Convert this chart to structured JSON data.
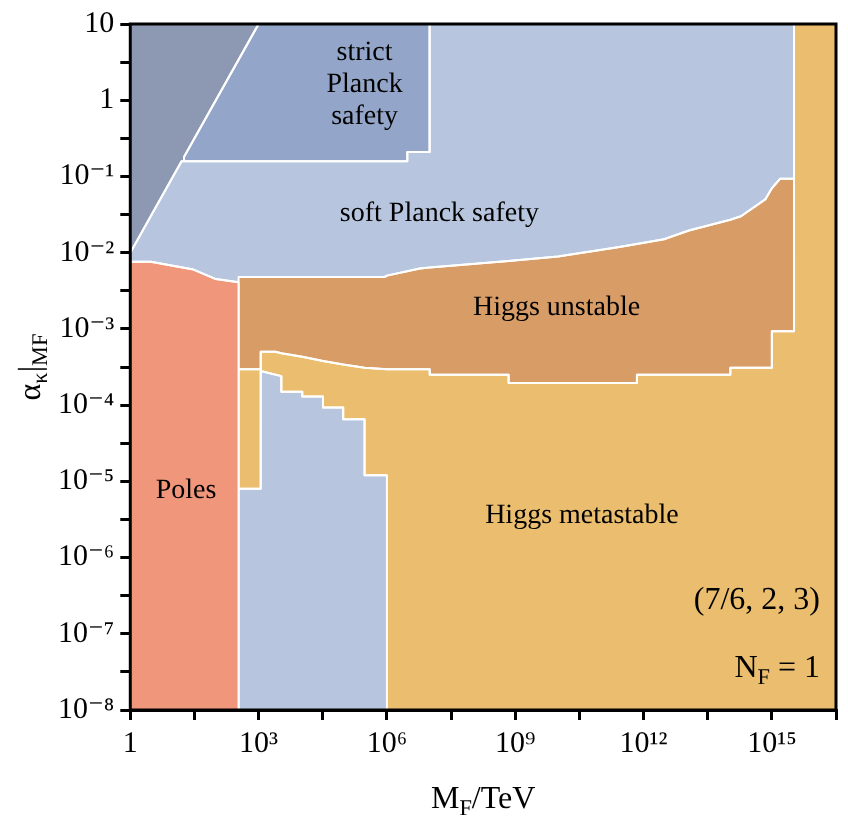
{
  "chart_data": {
    "type": "area",
    "xlabel": "M$_{F}$/TeV",
    "ylabel": "α$_{κ}$|$_{MF}$",
    "xlim": [
      1,
      3.16e+16
    ],
    "ylim": [
      1e-08,
      10
    ],
    "xticks": [
      1,
      {
        "value": 31.6,
        "label": null
      },
      {
        "value": 1000,
        "label": "10³"
      },
      {
        "value": 31600,
        "label": null
      },
      {
        "value": 1000000.0,
        "label": "10⁶"
      },
      {
        "value": 31600000.0,
        "label": null
      },
      {
        "value": 1000000000.0,
        "label": "10⁹"
      },
      {
        "value": 31600000000.0,
        "label": null
      },
      {
        "value": 1000000000000.0,
        "label": "10¹²"
      },
      {
        "value": 31600000000000.0,
        "label": null
      },
      {
        "value": 1000000000000000.0,
        "label": "10¹⁵"
      },
      {
        "value": 3.16e+16,
        "label": null
      }
    ],
    "yticks": [
      {
        "value": 1e-08,
        "label": "10⁻⁸"
      },
      {
        "value": 3.16e-08,
        "label": null
      },
      {
        "value": 1e-07,
        "label": "10⁻⁷"
      },
      {
        "value": 3.16e-07,
        "label": null
      },
      {
        "value": 1e-06,
        "label": "10⁻⁶"
      },
      {
        "value": 3.16e-06,
        "label": null
      },
      {
        "value": 1e-05,
        "label": "10⁻⁵"
      },
      {
        "value": 3.16e-05,
        "label": null
      },
      {
        "value": 0.0001,
        "label": "10⁻⁴"
      },
      {
        "value": 0.000316,
        "label": null
      },
      {
        "value": 0.001,
        "label": "10⁻³"
      },
      {
        "value": 0.00316,
        "label": null
      },
      {
        "value": 0.01,
        "label": "10⁻²"
      },
      {
        "value": 0.0316,
        "label": null
      },
      {
        "value": 0.1,
        "label": "10⁻¹"
      },
      {
        "value": 0.316,
        "label": null
      },
      1,
      {
        "value": 3.16,
        "label": null
      },
      10
    ],
    "log": "xy",
    "annotations": [
      "(7/6, 2, 3)",
      "N$_{F}$ = 1"
    ],
    "series": [
      {
        "color": "#8d98b3",
        "x": [
          1,
          1000
        ],
        "values": [
          10,
          10
        ]
      },
      {
        "name": "strict Planck safety",
        "color": "#93a6c9",
        "x": [
          18,
          1000,
          10000000.0
        ],
        "values": [
          0.18,
          10,
          10
        ]
      },
      {
        "name": "soft Planck safety",
        "color": "#b7c6de",
        "x": [
          1,
          3,
          15.8,
          3000000.0,
          3000000.0,
          10000000.0,
          10000000.0,
          3300000000000000.0
        ],
        "values": [
          0.01,
          0.03,
          0.158,
          0.158,
          0.21,
          0.21,
          10,
          10
        ]
      },
      {
        "name": "Higgs unstable",
        "color": "#d89c66",
        "x": [
          340,
          890000,
          1000000,
          5900000.0,
          10000000.0,
          700000000.0,
          10000000000.0,
          230000000000.0,
          700000000000.0,
          3000000000000.0,
          11500000000000.0,
          107000000000000.0,
          190000000000000.0,
          700000000000000.0,
          1000000000000000.0,
          1550000000000000.0,
          3300000000000000.0
        ],
        "values": [
          0.0048,
          0.0048,
          0.005,
          0.0062,
          0.0064,
          0.0078,
          0.0089,
          0.0117,
          0.013,
          0.015,
          0.0195,
          0.027,
          0.03,
          0.05,
          0.07,
          0.093,
          0.093
        ]
      },
      {
        "name": "Higgs metastable",
        "color": "#ebbd6e",
        "x": [
          340,
          1120,
          1120,
          2500,
          3400,
          10500,
          32000,
          95000,
          300000,
          1000000,
          10000000.0,
          10000000.0,
          700000000.0,
          700000000.0,
          700000000000.0,
          700000000000.0,
          107000000000000.0,
          107000000000000.0,
          1000000000000000.0,
          1000000000000000.0,
          3300000000000000.0,
          3300000000000000.0,
          3.16e+16
        ],
        "values": [
          0.000295,
          0.000295,
          0.0005,
          0.0005,
          0.00048,
          0.00043,
          0.00038,
          0.00034,
          0.00031,
          0.000295,
          0.000295,
          0.00025,
          0.00025,
          0.000195,
          0.000195,
          0.00025,
          0.00025,
          0.00031,
          0.00031,
          0.00093,
          0.00093,
          10,
          10
        ]
      },
      {
        "color": "#b7c6de",
        "x": [
          340,
          1120,
          1120,
          3400,
          3400,
          10500,
          10500,
          32000,
          32000,
          95000,
          95000,
          300000,
          300000,
          1000000
        ],
        "values": [
          8e-06,
          8e-06,
          0.00028,
          0.00024,
          0.00015,
          0.00015,
          0.00013,
          0.00013,
          9.3e-05,
          9.3e-05,
          6.5e-05,
          6.5e-05,
          1.2e-05,
          1.2e-05
        ]
      },
      {
        "name": "Poles",
        "color": "#f0967a",
        "x": [
          1,
          3,
          30,
          100,
          340
        ],
        "values": [
          0.0076,
          0.0076,
          0.006,
          0.0045,
          0.0041
        ]
      }
    ]
  }
}
